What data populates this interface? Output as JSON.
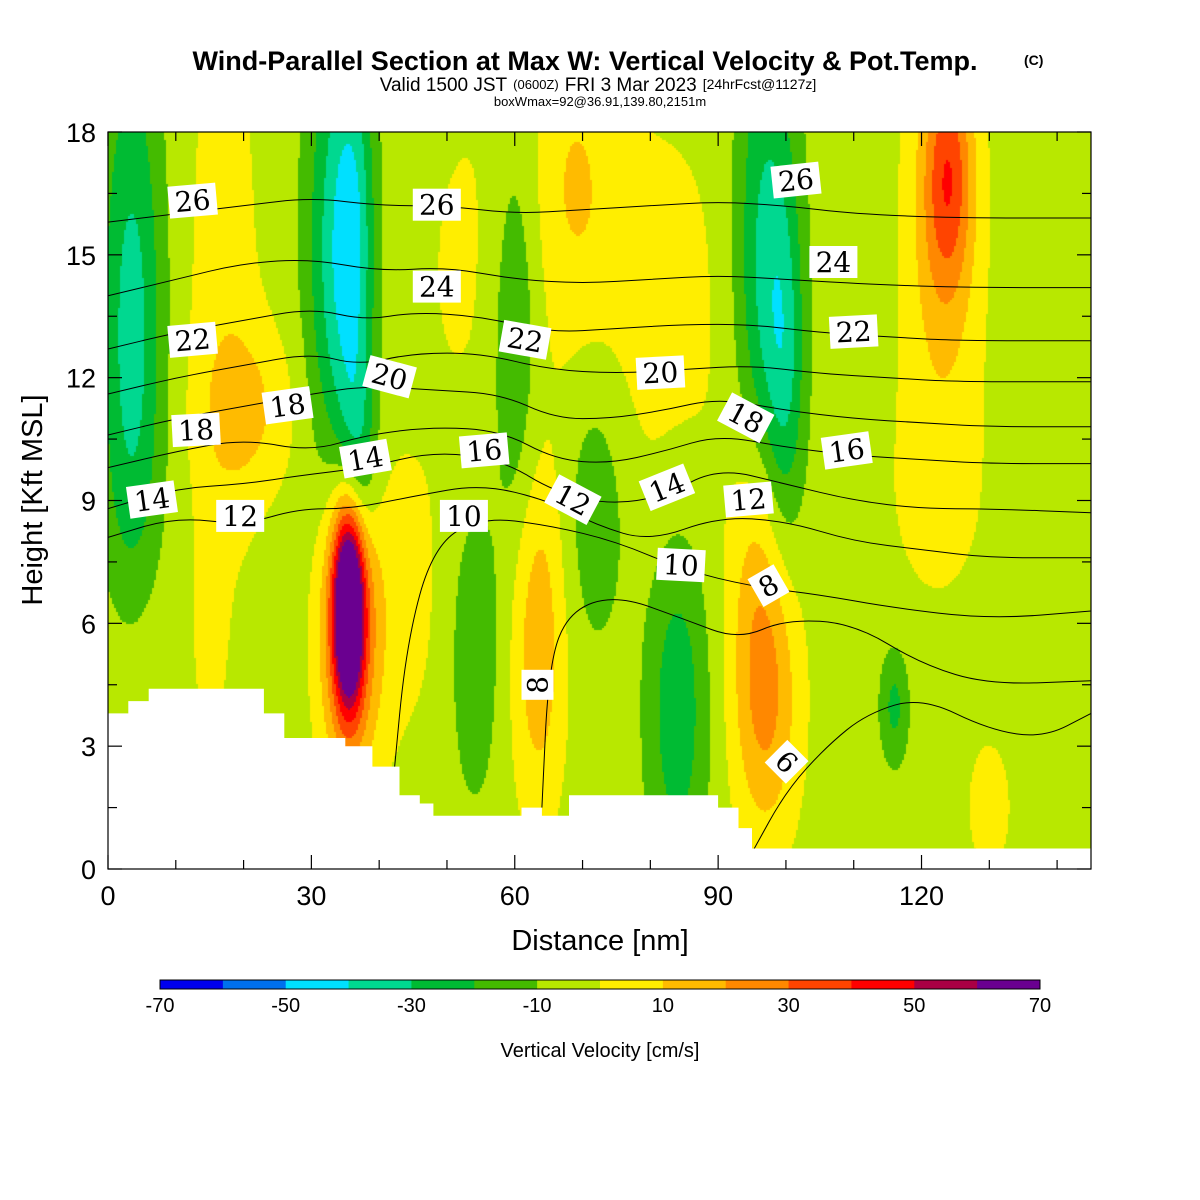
{
  "title": {
    "main": "Wind-Parallel Section at Max W: Vertical Velocity & Pot.Temp.",
    "copyright": "(C)",
    "valid_prefix": "Valid 1500 JST",
    "valid_utc": "(0600Z)",
    "valid_date": "FRI 3 Mar 2023",
    "forecast": "[24hrFcst@1127z]",
    "box_info": "boxWmax=92@36.91,139.80,2151m"
  },
  "colors": {
    "terrain": "#ffffff",
    "contour_line": "#000000",
    "label_box": "#ffffff"
  },
  "chart_data": {
    "type": "heatmap",
    "xlabel": "Distance [nm]",
    "ylabel": "Height [Kft MSL]",
    "xlim": [
      0,
      145
    ],
    "ylim": [
      0,
      18
    ],
    "x_ticks": [
      0,
      30,
      60,
      90,
      120
    ],
    "y_ticks": [
      0,
      3,
      6,
      9,
      12,
      15,
      18
    ],
    "colorbar": {
      "label": "Vertical Velocity [cm/s]",
      "tick_labels": [
        "-70",
        "-50",
        "-30",
        "-10",
        "10",
        "30",
        "50",
        "70"
      ],
      "levels": [
        -70,
        -60,
        -50,
        -40,
        -30,
        -20,
        -10,
        0,
        10,
        20,
        30,
        40,
        50,
        60,
        70
      ],
      "colors": [
        "#0000ee",
        "#0070ee",
        "#00e0ff",
        "#00d890",
        "#00bb33",
        "#44bb00",
        "#b8e800",
        "#ffee00",
        "#ffbb00",
        "#ff8800",
        "#ff4400",
        "#ff0000",
        "#aa0044",
        "#6a0090"
      ]
    },
    "background_w": -5,
    "w_features": [
      {
        "x": 3.5,
        "y": 13.0,
        "sx": 3.2,
        "sy": 5.0,
        "w": -30
      },
      {
        "x": 17,
        "y": 14.0,
        "sx": 4.0,
        "sy": 6.0,
        "w": 10
      },
      {
        "x": 21,
        "y": 11.2,
        "sx": 5.0,
        "sy": 1.5,
        "w": 14
      },
      {
        "x": 34,
        "y": 15.0,
        "sx": 3.2,
        "sy": 4.2,
        "w": -32
      },
      {
        "x": 36.5,
        "y": 15.5,
        "sx": 2.0,
        "sy": 3.0,
        "w": -18
      },
      {
        "x": 37,
        "y": 10.0,
        "sx": 2.0,
        "sy": 1.8,
        "w": -22
      },
      {
        "x": 35.5,
        "y": 6.4,
        "sx": 1.5,
        "sy": 1.6,
        "w": 82
      },
      {
        "x": 35.5,
        "y": 6.0,
        "sx": 3.0,
        "sy": 2.6,
        "w": 40
      },
      {
        "x": 42,
        "y": 6.5,
        "sx": 6.0,
        "sy": 3.0,
        "w": 8
      },
      {
        "x": 54,
        "y": 15.0,
        "sx": 8.0,
        "sy": 4.0,
        "w": 6
      },
      {
        "x": 69,
        "y": 17.0,
        "sx": 4.0,
        "sy": 2.5,
        "w": 12
      },
      {
        "x": 80,
        "y": 13.5,
        "sx": 10.0,
        "sy": 4.0,
        "w": 9
      },
      {
        "x": 54,
        "y": 5.4,
        "sx": 2.5,
        "sy": 2.5,
        "w": -15
      },
      {
        "x": 63.5,
        "y": 5.5,
        "sx": 2.8,
        "sy": 3.0,
        "w": 22
      },
      {
        "x": 60,
        "y": 13.0,
        "sx": 2.5,
        "sy": 3.5,
        "w": -18
      },
      {
        "x": 72,
        "y": 9.0,
        "sx": 3.5,
        "sy": 2.5,
        "w": -14
      },
      {
        "x": 84,
        "y": 4.0,
        "sx": 3.2,
        "sy": 3.0,
        "w": -22
      },
      {
        "x": 96,
        "y": 8.2,
        "sx": 3.0,
        "sy": 2.5,
        "w": 16
      },
      {
        "x": 97,
        "y": 4.2,
        "sx": 3.5,
        "sy": 2.5,
        "w": 28
      },
      {
        "x": 97,
        "y": 14.5,
        "sx": 3.2,
        "sy": 4.5,
        "w": -30
      },
      {
        "x": 100,
        "y": 12.2,
        "sx": 2.0,
        "sy": 3.0,
        "w": -18
      },
      {
        "x": 123,
        "y": 15.5,
        "sx": 4.0,
        "sy": 3.5,
        "w": 18
      },
      {
        "x": 124,
        "y": 17.0,
        "sx": 2.5,
        "sy": 2.0,
        "w": 30
      },
      {
        "x": 122,
        "y": 9.0,
        "sx": 7.0,
        "sy": 2.5,
        "w": 6
      },
      {
        "x": 116,
        "y": 4.0,
        "sx": 1.5,
        "sy": 1.0,
        "w": -18
      },
      {
        "x": 130,
        "y": 1.5,
        "sx": 3.0,
        "sy": 1.5,
        "w": 8
      },
      {
        "x": 4,
        "y": 5.0,
        "sx": 4.0,
        "sy": 2.0,
        "w": 7
      },
      {
        "x": 15,
        "y": 6.0,
        "sx": 1.5,
        "sy": 2.0,
        "w": 8
      }
    ],
    "terrain": [
      [
        0,
        3.8
      ],
      [
        3,
        3.8
      ],
      [
        3,
        4.1
      ],
      [
        6,
        4.1
      ],
      [
        6,
        4.4
      ],
      [
        23,
        4.4
      ],
      [
        23,
        3.8
      ],
      [
        26,
        3.8
      ],
      [
        26,
        3.2
      ],
      [
        35,
        3.2
      ],
      [
        35,
        3.0
      ],
      [
        39,
        3.0
      ],
      [
        39,
        2.5
      ],
      [
        43,
        2.5
      ],
      [
        43,
        1.8
      ],
      [
        46,
        1.8
      ],
      [
        46,
        1.6
      ],
      [
        48,
        1.6
      ],
      [
        48,
        1.3
      ],
      [
        61,
        1.3
      ],
      [
        61,
        1.5
      ],
      [
        64,
        1.5
      ],
      [
        64,
        1.3
      ],
      [
        68,
        1.3
      ],
      [
        68,
        1.8
      ],
      [
        90,
        1.8
      ],
      [
        90,
        1.5
      ],
      [
        93,
        1.5
      ],
      [
        93,
        1.0
      ],
      [
        95,
        1.0
      ],
      [
        95,
        0.5
      ],
      [
        145,
        0.5
      ]
    ],
    "theta_contours": [
      {
        "level": 6,
        "points": [
          [
            95,
            0.4
          ],
          [
            100,
            1.9
          ],
          [
            106,
            3.0
          ],
          [
            112,
            3.8
          ],
          [
            120,
            4.2
          ],
          [
            130,
            3.4
          ],
          [
            138,
            3.2
          ],
          [
            145,
            3.8
          ]
        ]
      },
      {
        "level": 8,
        "points": [
          [
            64,
            1.5
          ],
          [
            65,
            5.0
          ],
          [
            68,
            6.3
          ],
          [
            75,
            6.7
          ],
          [
            85,
            6.1
          ],
          [
            93,
            5.6
          ],
          [
            100,
            6.1
          ],
          [
            110,
            6.0
          ],
          [
            120,
            5.0
          ],
          [
            130,
            4.5
          ],
          [
            145,
            4.6
          ]
        ]
      },
      {
        "level": 10,
        "points": [
          [
            42,
            2.0
          ],
          [
            44,
            5.5
          ],
          [
            48,
            7.9
          ],
          [
            55,
            8.6
          ],
          [
            65,
            8.4
          ],
          [
            75,
            8.0
          ],
          [
            85,
            7.3
          ],
          [
            95,
            6.9
          ],
          [
            105,
            6.7
          ],
          [
            115,
            6.4
          ],
          [
            130,
            6.1
          ],
          [
            145,
            6.3
          ]
        ]
      },
      {
        "level": 12,
        "points": [
          [
            0,
            8.1
          ],
          [
            10,
            8.6
          ],
          [
            20,
            8.4
          ],
          [
            28,
            8.8
          ],
          [
            36,
            8.8
          ],
          [
            45,
            9.1
          ],
          [
            55,
            9.4
          ],
          [
            65,
            9.0
          ],
          [
            72,
            8.4
          ],
          [
            80,
            8.0
          ],
          [
            90,
            8.6
          ],
          [
            100,
            8.5
          ],
          [
            110,
            8.0
          ],
          [
            120,
            7.8
          ],
          [
            130,
            7.6
          ],
          [
            145,
            7.6
          ]
        ]
      },
      {
        "level": 14,
        "points": [
          [
            0,
            8.8
          ],
          [
            10,
            9.3
          ],
          [
            20,
            9.4
          ],
          [
            28,
            9.6
          ],
          [
            38,
            9.8
          ],
          [
            48,
            10.2
          ],
          [
            58,
            10.0
          ],
          [
            66,
            9.2
          ],
          [
            74,
            8.9
          ],
          [
            82,
            9.1
          ],
          [
            90,
            9.8
          ],
          [
            100,
            9.4
          ],
          [
            110,
            9.0
          ],
          [
            120,
            8.8
          ],
          [
            130,
            8.8
          ],
          [
            145,
            8.7
          ]
        ]
      },
      {
        "level": 16,
        "points": [
          [
            0,
            9.8
          ],
          [
            10,
            10.2
          ],
          [
            20,
            10.5
          ],
          [
            30,
            10.2
          ],
          [
            38,
            10.6
          ],
          [
            48,
            10.8
          ],
          [
            58,
            10.7
          ],
          [
            66,
            10.0
          ],
          [
            74,
            9.9
          ],
          [
            82,
            10.2
          ],
          [
            90,
            10.6
          ],
          [
            100,
            10.3
          ],
          [
            110,
            10.1
          ],
          [
            120,
            10.0
          ],
          [
            130,
            9.9
          ],
          [
            145,
            9.9
          ]
        ]
      },
      {
        "level": 18,
        "points": [
          [
            0,
            10.6
          ],
          [
            10,
            11.0
          ],
          [
            20,
            11.3
          ],
          [
            30,
            11.6
          ],
          [
            38,
            11.8
          ],
          [
            48,
            11.7
          ],
          [
            58,
            11.6
          ],
          [
            66,
            11.0
          ],
          [
            74,
            11.0
          ],
          [
            82,
            11.2
          ],
          [
            90,
            11.5
          ],
          [
            100,
            11.2
          ],
          [
            110,
            11.0
          ],
          [
            120,
            10.9
          ],
          [
            130,
            10.8
          ],
          [
            145,
            10.8
          ]
        ]
      },
      {
        "level": 20,
        "points": [
          [
            0,
            11.6
          ],
          [
            10,
            12.0
          ],
          [
            20,
            12.3
          ],
          [
            30,
            12.6
          ],
          [
            37,
            12.3
          ],
          [
            45,
            12.6
          ],
          [
            55,
            12.6
          ],
          [
            65,
            12.2
          ],
          [
            75,
            12.1
          ],
          [
            85,
            12.2
          ],
          [
            95,
            12.3
          ],
          [
            105,
            12.1
          ],
          [
            115,
            12.0
          ],
          [
            125,
            11.9
          ],
          [
            145,
            11.9
          ]
        ]
      },
      {
        "level": 22,
        "points": [
          [
            0,
            12.7
          ],
          [
            10,
            13.1
          ],
          [
            20,
            13.4
          ],
          [
            30,
            13.7
          ],
          [
            38,
            13.4
          ],
          [
            45,
            13.6
          ],
          [
            55,
            13.5
          ],
          [
            65,
            13.1
          ],
          [
            75,
            13.2
          ],
          [
            85,
            13.3
          ],
          [
            95,
            13.3
          ],
          [
            105,
            13.1
          ],
          [
            115,
            13.0
          ],
          [
            125,
            12.9
          ],
          [
            145,
            12.9
          ]
        ]
      },
      {
        "level": 24,
        "points": [
          [
            0,
            14.0
          ],
          [
            10,
            14.4
          ],
          [
            20,
            14.8
          ],
          [
            30,
            14.9
          ],
          [
            40,
            14.6
          ],
          [
            50,
            14.7
          ],
          [
            60,
            14.4
          ],
          [
            70,
            14.3
          ],
          [
            80,
            14.4
          ],
          [
            90,
            14.5
          ],
          [
            100,
            14.4
          ],
          [
            110,
            14.3
          ],
          [
            125,
            14.2
          ],
          [
            145,
            14.2
          ]
        ]
      },
      {
        "level": 26,
        "points": [
          [
            0,
            15.8
          ],
          [
            10,
            16.0
          ],
          [
            20,
            16.2
          ],
          [
            30,
            16.4
          ],
          [
            40,
            16.2
          ],
          [
            50,
            16.2
          ],
          [
            60,
            16.0
          ],
          [
            70,
            16.1
          ],
          [
            80,
            16.2
          ],
          [
            90,
            16.3
          ],
          [
            100,
            16.2
          ],
          [
            110,
            16.0
          ],
          [
            125,
            15.9
          ],
          [
            145,
            15.9
          ]
        ]
      }
    ],
    "contour_labels": [
      {
        "text": "26",
        "x": 12.5,
        "y": 16.3,
        "angle": -5
      },
      {
        "text": "26",
        "x": 48.5,
        "y": 16.2,
        "angle": 0
      },
      {
        "text": "26",
        "x": 101.5,
        "y": 16.8,
        "angle": -6
      },
      {
        "text": "24",
        "x": 48.5,
        "y": 14.2,
        "angle": 0
      },
      {
        "text": "24",
        "x": 107,
        "y": 14.8,
        "angle": 0
      },
      {
        "text": "22",
        "x": 12.5,
        "y": 12.9,
        "angle": -5
      },
      {
        "text": "22",
        "x": 61.5,
        "y": 12.9,
        "angle": 10
      },
      {
        "text": "22",
        "x": 110,
        "y": 13.1,
        "angle": -3
      },
      {
        "text": "20",
        "x": 41.5,
        "y": 12.0,
        "angle": 15
      },
      {
        "text": "20",
        "x": 81.5,
        "y": 12.1,
        "angle": -3
      },
      {
        "text": "18",
        "x": 13,
        "y": 10.7,
        "angle": -3
      },
      {
        "text": "18",
        "x": 26.5,
        "y": 11.3,
        "angle": -8
      },
      {
        "text": "18",
        "x": 94,
        "y": 11.0,
        "angle": 28
      },
      {
        "text": "16",
        "x": 55.5,
        "y": 10.2,
        "angle": -5
      },
      {
        "text": "16",
        "x": 109,
        "y": 10.2,
        "angle": -8
      },
      {
        "text": "14",
        "x": 6.5,
        "y": 9.0,
        "angle": -8
      },
      {
        "text": "14",
        "x": 38,
        "y": 10.0,
        "angle": -10
      },
      {
        "text": "14",
        "x": 82.5,
        "y": 9.3,
        "angle": -22
      },
      {
        "text": "12",
        "x": 19.5,
        "y": 8.6,
        "angle": 0
      },
      {
        "text": "12",
        "x": 68.5,
        "y": 9.0,
        "angle": 28
      },
      {
        "text": "12",
        "x": 94.5,
        "y": 9.0,
        "angle": -5
      },
      {
        "text": "10",
        "x": 52.5,
        "y": 8.6,
        "angle": 0
      },
      {
        "text": "10",
        "x": 84.5,
        "y": 7.4,
        "angle": 3
      },
      {
        "text": "8",
        "x": 63.5,
        "y": 4.5,
        "angle": -90
      },
      {
        "text": "8",
        "x": 97.5,
        "y": 6.9,
        "angle": -30
      },
      {
        "text": "6",
        "x": 100,
        "y": 2.6,
        "angle": 45
      }
    ]
  }
}
